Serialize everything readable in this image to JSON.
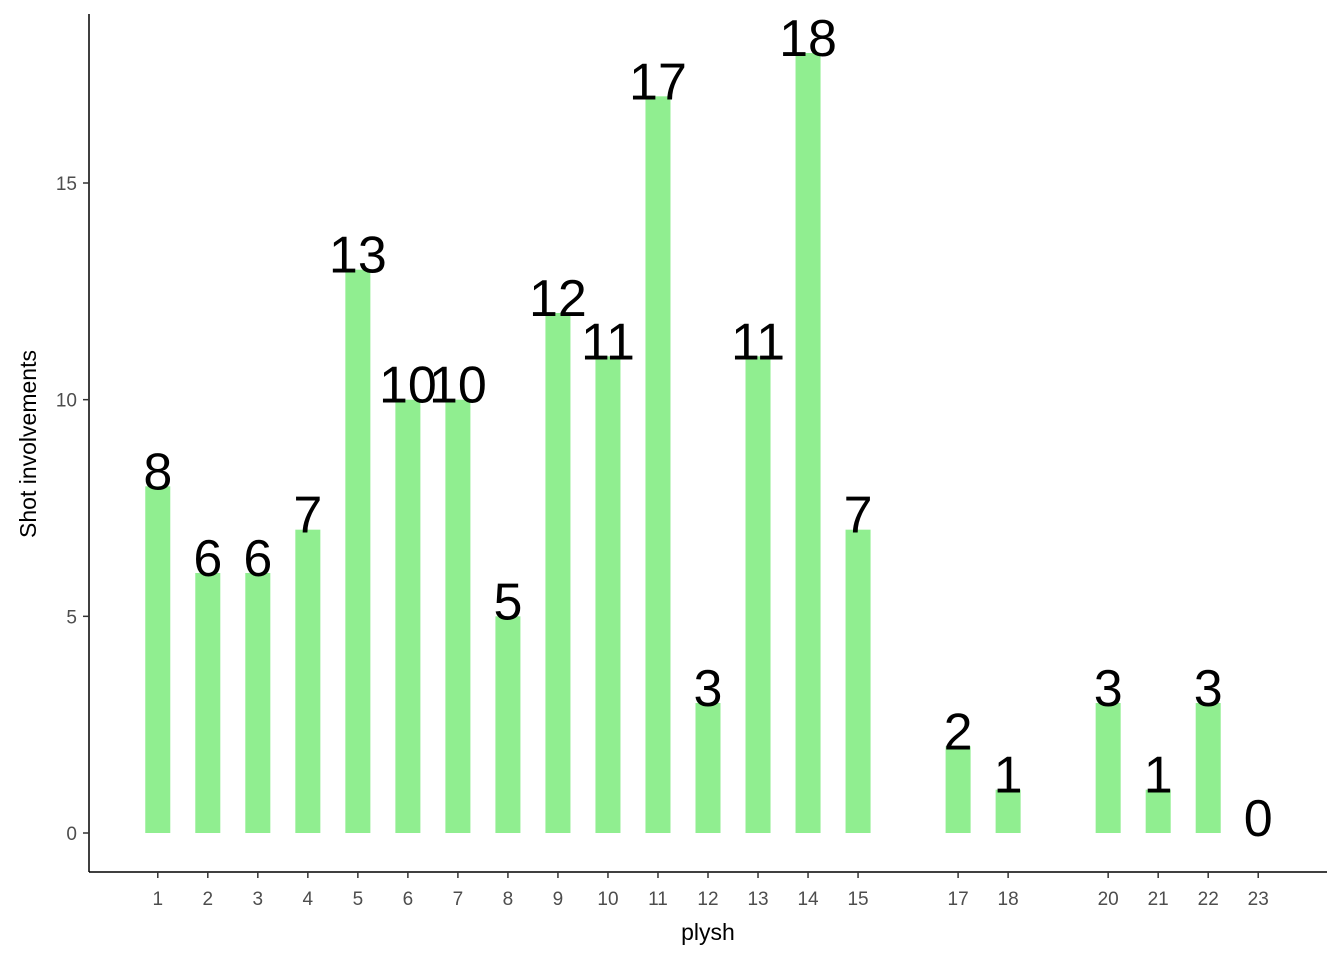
{
  "chart_data": {
    "type": "bar",
    "x_label": "plysh",
    "y_label": "Shot involvements",
    "x": [
      1,
      2,
      3,
      4,
      5,
      6,
      7,
      8,
      9,
      10,
      11,
      12,
      13,
      14,
      15,
      17,
      18,
      20,
      21,
      22,
      23
    ],
    "values": [
      8,
      6,
      6,
      7,
      13,
      10,
      10,
      5,
      12,
      11,
      17,
      3,
      11,
      18,
      7,
      2,
      1,
      3,
      1,
      3,
      0
    ],
    "color": "#90ee90",
    "xlim": [
      -0.375,
      24.375
    ],
    "xticks": [
      1,
      2,
      3,
      4,
      5,
      6,
      7,
      8,
      9,
      10,
      11,
      12,
      13,
      14,
      15,
      17,
      18,
      20,
      21,
      22,
      23
    ],
    "ylim": [
      -0.9,
      18.9
    ],
    "yticks": [
      0,
      5,
      10,
      15
    ],
    "grid": false
  }
}
